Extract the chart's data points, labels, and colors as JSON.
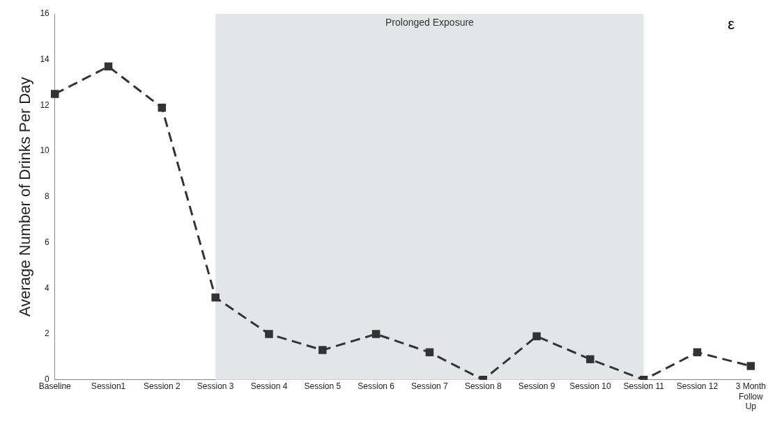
{
  "chart_data": {
    "type": "line",
    "ylabel": "Average Number of Drinks Per Day",
    "categories": [
      "Baseline",
      "Session1",
      "Session 2",
      "Session 3",
      "Session 4",
      "Session 5",
      "Session 6",
      "Session 7",
      "Session 8",
      "Session 9",
      "Session 10",
      "Session 11",
      "Session 12",
      "3 Month Follow Up"
    ],
    "series": [
      {
        "color": "#333333",
        "values": [
          12.5,
          13.7,
          11.9,
          3.6,
          2.0,
          1.3,
          2.0,
          1.2,
          0,
          1.9,
          0.9,
          0,
          1.2,
          0.6
        ]
      }
    ],
    "ylim": [
      0,
      16
    ],
    "yticks": [
      0,
      2,
      4,
      6,
      8,
      10,
      12,
      14,
      16
    ],
    "grid": false,
    "legend": false,
    "marker": "square",
    "line_style": "dashed",
    "bands": [
      {
        "axis": "x",
        "from": "Session 3",
        "to": "Session 11",
        "label": "Prolonged Exposure",
        "color": "#e4e5e9"
      }
    ],
    "annotations": [
      "ε"
    ]
  }
}
